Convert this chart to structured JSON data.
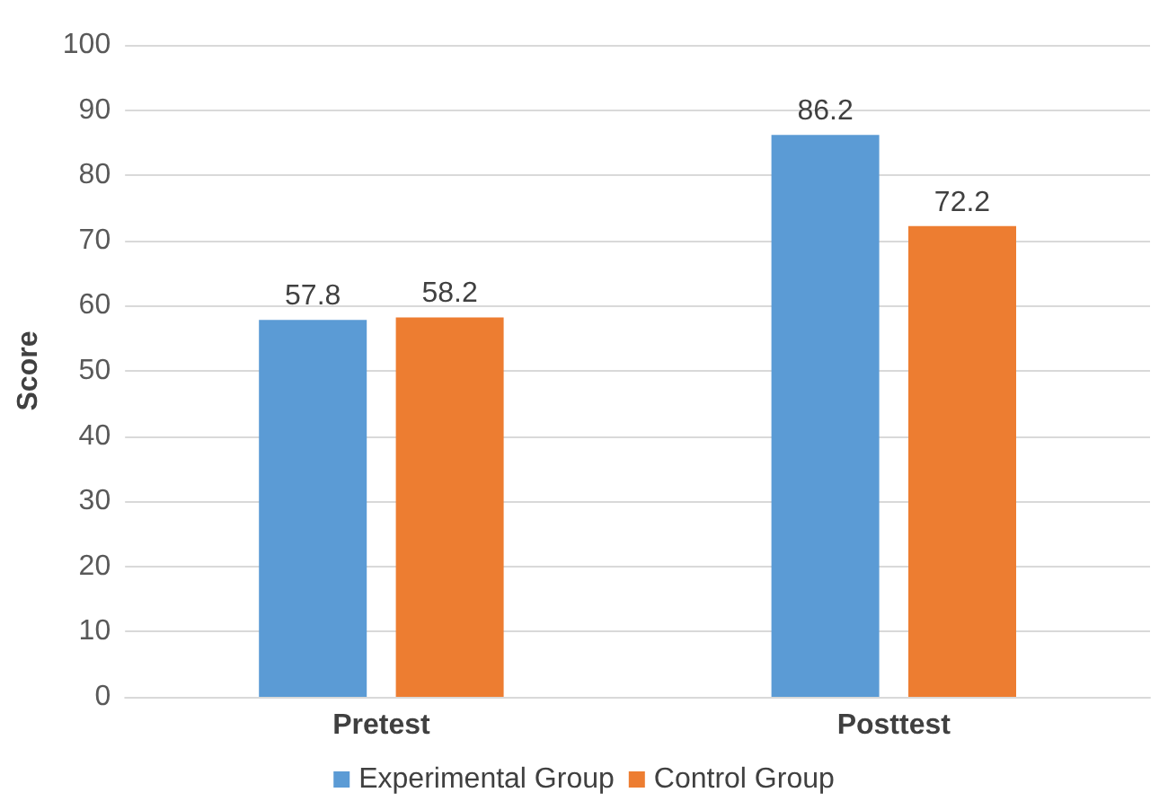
{
  "chart_data": {
    "type": "bar",
    "ylabel": "Score",
    "categories": [
      "Pretest",
      "Posttest"
    ],
    "series": [
      {
        "name": "Experimental Group",
        "color": "#5b9bd5",
        "values": [
          57.8,
          86.2
        ]
      },
      {
        "name": "Control Group",
        "color": "#ed7d31",
        "values": [
          58.2,
          72.2
        ]
      }
    ],
    "ylim": [
      0,
      100
    ],
    "yticks": [
      0,
      10,
      20,
      30,
      40,
      50,
      60,
      70,
      80,
      90,
      100
    ],
    "grid": "y",
    "legend": "bottom",
    "data_labels": true
  }
}
